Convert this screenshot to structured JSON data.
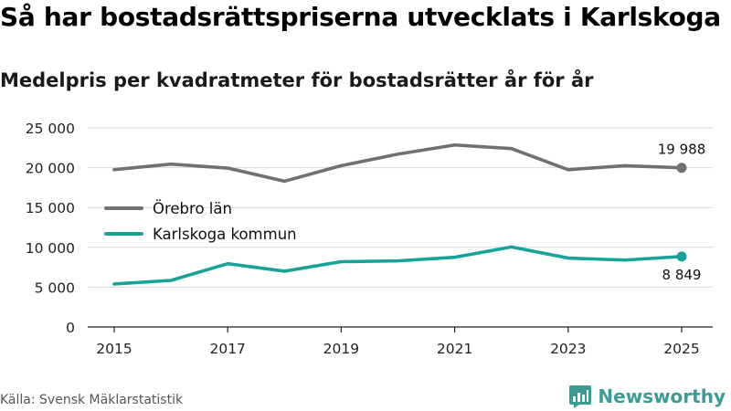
{
  "header": {
    "title": "Så har bostadsrättspriserna utvecklats i Karlskoga",
    "subtitle": "Medelpris per kvadratmeter för bostadsrätter år för år"
  },
  "footer": {
    "source": "Källa: Svensk Mäklarstatistik",
    "brand": "Newsworthy",
    "brand_icon": "newsworthy-logo-icon"
  },
  "colors": {
    "orebro": "#707070",
    "karlskoga": "#17a398",
    "grid": "#d9d9d9",
    "axis": "#222222",
    "brand": "#3a9c94"
  },
  "chart_data": {
    "type": "line",
    "title": "Så har bostadsrättspriserna utvecklats i Karlskoga",
    "subtitle": "Medelpris per kvadratmeter för bostadsrätter år för år",
    "xlabel": "",
    "ylabel": "",
    "x": [
      2015,
      2016,
      2017,
      2018,
      2019,
      2020,
      2021,
      2022,
      2023,
      2024,
      2025
    ],
    "xticks": [
      "2015",
      "2017",
      "2019",
      "2021",
      "2023",
      "2025"
    ],
    "xlim": [
      2015,
      2025
    ],
    "ylim": [
      0,
      25000
    ],
    "yticks": [
      0,
      5000,
      10000,
      15000,
      20000,
      25000
    ],
    "ytick_labels": [
      "0",
      "5 000",
      "10 000",
      "15 000",
      "20 000",
      "25 000"
    ],
    "grid": true,
    "legend_position": "middle-left",
    "series": [
      {
        "name": "Örebro län",
        "color_key": "orebro",
        "values": [
          19750,
          20450,
          19950,
          18300,
          20250,
          21700,
          22850,
          22400,
          19750,
          20250,
          19988
        ],
        "end_label": "19 988",
        "end_label_position": "above"
      },
      {
        "name": "Karlskoga kommun",
        "color_key": "karlskoga",
        "values": [
          5400,
          5850,
          7950,
          7000,
          8200,
          8300,
          8750,
          10050,
          8650,
          8400,
          8849
        ],
        "end_label": "8 849",
        "end_label_position": "below"
      }
    ]
  }
}
